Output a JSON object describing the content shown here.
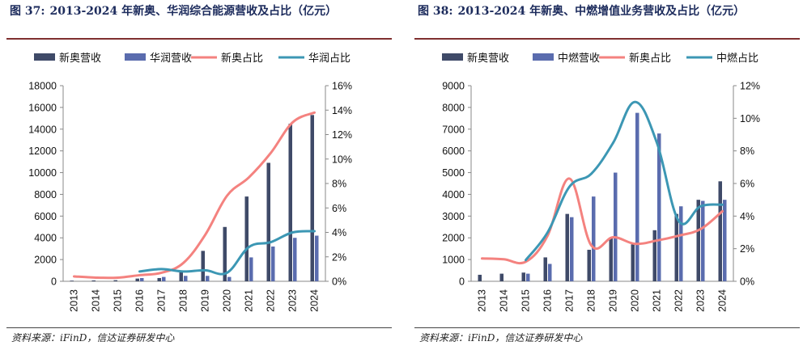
{
  "panels": [
    {
      "figure_label": "图 37:",
      "title": "2013-2024 年新奥、华润综合能源营收及占比（亿元）",
      "source": "资料来源：iFinD，信达证券研发中心",
      "colors": {
        "bar1": "#3f4a68",
        "bar2": "#5a6cae",
        "line1": "#f4827f",
        "line2": "#3c97b4"
      },
      "chart_data": {
        "type": "bar",
        "categories": [
          "2013",
          "2014",
          "2015",
          "2016",
          "2017",
          "2018",
          "2019",
          "2020",
          "2021",
          "2022",
          "2023",
          "2024"
        ],
        "series": [
          {
            "name": "新奥营收",
            "type": "bar",
            "axis": "left",
            "values": [
              60,
              80,
              100,
              250,
              300,
              1000,
              2800,
              5000,
              7800,
              10900,
              14500,
              15300
            ]
          },
          {
            "name": "华润营收",
            "type": "bar",
            "axis": "left",
            "values": [
              null,
              null,
              null,
              300,
              400,
              500,
              500,
              400,
              2200,
              3200,
              4000,
              4200
            ]
          },
          {
            "name": "新奥占比",
            "type": "line",
            "axis": "right",
            "values": [
              0.4,
              0.3,
              0.3,
              0.5,
              0.7,
              1.5,
              3.8,
              7.0,
              8.5,
              10.5,
              13.0,
              13.8
            ]
          },
          {
            "name": "华润占比",
            "type": "line",
            "axis": "right",
            "values": [
              null,
              null,
              null,
              0.8,
              1.0,
              0.8,
              0.9,
              0.7,
              2.8,
              3.2,
              4.0,
              4.1
            ]
          }
        ],
        "ylim": [
          0,
          18000
        ],
        "yticks": [
          "0",
          "2000",
          "4000",
          "6000",
          "8000",
          "10000",
          "12000",
          "14000",
          "16000",
          "18000"
        ],
        "y2lim": [
          0,
          16
        ],
        "y2ticks": [
          "0%",
          "2%",
          "4%",
          "6%",
          "8%",
          "10%",
          "12%",
          "14%",
          "16%"
        ],
        "legend_position": "top"
      }
    },
    {
      "figure_label": "图 38:",
      "title": "2013-2024 年新奥、中燃增值业务营收及占比（亿元）",
      "source": "资料来源：iFinD，信达证券研发中心",
      "colors": {
        "bar1": "#3f4a68",
        "bar2": "#5a6cae",
        "line1": "#f4827f",
        "line2": "#3c97b4"
      },
      "chart_data": {
        "type": "bar",
        "categories": [
          "2013",
          "2014",
          "2015",
          "2016",
          "2017",
          "2018",
          "2019",
          "2020",
          "2021",
          "2022",
          "2023",
          "2024"
        ],
        "series": [
          {
            "name": "新奥营收",
            "type": "bar",
            "axis": "left",
            "values": [
              300,
              350,
              400,
              1100,
              3100,
              1450,
              2000,
              1700,
              2350,
              3100,
              3750,
              4600
            ]
          },
          {
            "name": "中燃营收",
            "type": "bar",
            "axis": "left",
            "values": [
              null,
              null,
              350,
              800,
              2950,
              3900,
              5000,
              7750,
              6800,
              3450,
              3700,
              3750
            ]
          },
          {
            "name": "新奥占比",
            "type": "line",
            "axis": "right",
            "values": [
              1.4,
              1.35,
              1.2,
              2.8,
              6.3,
              2.2,
              2.7,
              2.3,
              2.5,
              2.8,
              3.2,
              4.3
            ]
          },
          {
            "name": "中燃占比",
            "type": "line",
            "axis": "right",
            "values": [
              null,
              null,
              1.3,
              3.0,
              5.8,
              6.6,
              8.5,
              11.0,
              8.5,
              3.7,
              4.6,
              4.7
            ]
          }
        ],
        "ylim": [
          0,
          9000
        ],
        "yticks": [
          "0",
          "1000",
          "2000",
          "3000",
          "4000",
          "5000",
          "6000",
          "7000",
          "8000",
          "9000"
        ],
        "y2lim": [
          0,
          12
        ],
        "y2ticks": [
          "0%",
          "2%",
          "4%",
          "6%",
          "8%",
          "10%",
          "12%"
        ],
        "legend_position": "top"
      }
    }
  ]
}
